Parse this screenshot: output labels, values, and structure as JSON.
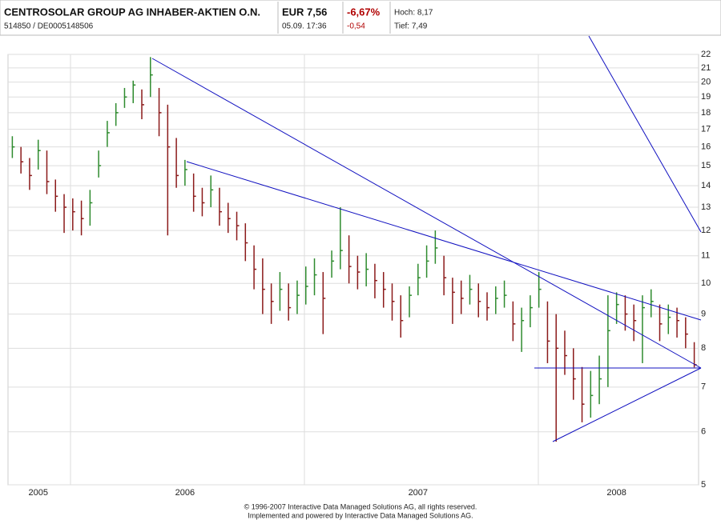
{
  "header": {
    "title": "CENTROSOLAR GROUP AG INHABER-AKTIEN O.N.",
    "ids": "514850  /  DE0005148506",
    "price": "EUR 7,56",
    "time": "05.09. 17:36",
    "change_pct": "-6,67%",
    "change_abs": "-0,54",
    "high": "Hoch: 8,17",
    "low": "Tief: 7,49"
  },
  "footer": {
    "line1": "© 1996-2007 Interactive Data Managed Solutions AG, all rights reserved.",
    "line2": "Implemented and powered by Interactive Data Managed Solutions AG."
  },
  "chart_data": {
    "type": "ohlc",
    "log_y": true,
    "grid": true,
    "up_color": "#2e8b2e",
    "down_color": "#8b1a1a",
    "categories": [
      null,
      null,
      null,
      "2005",
      null,
      null,
      null,
      null,
      null,
      null,
      null,
      null,
      null,
      null,
      null,
      null,
      null,
      null,
      null,
      null,
      "2006",
      null,
      null,
      null,
      null,
      null,
      null,
      null,
      null,
      null,
      null,
      null,
      null,
      null,
      null,
      null,
      null,
      null,
      null,
      null,
      null,
      null,
      null,
      null,
      null,
      null,
      null,
      "2007",
      null,
      null,
      null,
      null,
      null,
      null,
      null,
      null,
      null,
      null,
      null,
      null,
      null,
      null,
      null,
      null,
      null,
      null,
      null,
      null,
      null,
      null,
      "2008",
      null,
      null,
      null,
      null,
      null,
      null,
      null,
      null,
      null
    ],
    "high": [
      16.6,
      16.0,
      15.4,
      16.4,
      15.8,
      14.3,
      13.6,
      13.4,
      13.3,
      13.8,
      15.8,
      17.5,
      18.6,
      19.6,
      20.1,
      19.5,
      21.8,
      19.6,
      18.5,
      16.5,
      15.3,
      14.6,
      13.9,
      14.5,
      13.9,
      13.2,
      12.8,
      12.3,
      11.4,
      10.9,
      10.0,
      10.4,
      10.0,
      10.1,
      10.6,
      10.9,
      10.4,
      11.2,
      13.0,
      11.8,
      11.0,
      11.1,
      10.7,
      10.4,
      10.0,
      9.6,
      9.9,
      10.7,
      11.4,
      12.0,
      11.0,
      10.2,
      10.1,
      10.3,
      10.0,
      9.7,
      9.9,
      10.1,
      9.4,
      9.2,
      9.6,
      10.4,
      9.4,
      9.0,
      8.5,
      8.0,
      7.5,
      7.4,
      7.8,
      9.6,
      9.7,
      9.6,
      9.3,
      9.6,
      9.8,
      9.3,
      9.3,
      9.2,
      8.9,
      8.17
    ],
    "low": [
      15.4,
      14.6,
      13.8,
      14.8,
      13.6,
      12.8,
      11.9,
      12.0,
      11.8,
      12.2,
      14.4,
      16.0,
      17.2,
      18.3,
      18.6,
      17.6,
      19.0,
      16.6,
      11.8,
      13.9,
      14.0,
      12.8,
      12.6,
      13.0,
      12.2,
      11.9,
      11.6,
      10.8,
      9.8,
      9.0,
      8.7,
      9.1,
      8.8,
      9.0,
      9.3,
      9.6,
      8.4,
      10.2,
      10.5,
      10.0,
      9.8,
      9.9,
      9.5,
      9.2,
      8.8,
      8.3,
      8.9,
      9.6,
      10.2,
      10.7,
      9.6,
      8.7,
      9.0,
      9.3,
      8.9,
      8.8,
      9.0,
      9.2,
      8.2,
      7.9,
      8.6,
      9.2,
      7.6,
      5.8,
      7.3,
      6.7,
      6.2,
      6.3,
      6.6,
      7.0,
      8.7,
      8.5,
      8.2,
      7.6,
      8.9,
      8.2,
      8.4,
      8.3,
      8.0,
      7.49
    ],
    "close": [
      16,
      15.2,
      14.5,
      15.8,
      14.2,
      13.5,
      13,
      12.8,
      12.5,
      13.2,
      15,
      16.8,
      18,
      19,
      19.8,
      18.5,
      20.5,
      18,
      16,
      14.5,
      14.8,
      13.5,
      13.2,
      13.8,
      12.8,
      12.5,
      12.2,
      11.5,
      10.5,
      9.8,
      9.4,
      9.8,
      9.2,
      9.6,
      9.9,
      10.3,
      9.5,
      10.8,
      11.2,
      10.6,
      10.4,
      10.5,
      10.1,
      9.8,
      9.4,
      8.8,
      9.6,
      10.2,
      10.8,
      11.3,
      10.2,
      9.7,
      9.5,
      9.8,
      9.4,
      9.2,
      9.5,
      9.6,
      8.7,
      8.8,
      9.2,
      9.8,
      8.2,
      8.0,
      7.8,
      7.2,
      6.6,
      6.8,
      7.2,
      8.5,
      9.3,
      9.0,
      8.8,
      9.2,
      9.4,
      8.7,
      8.9,
      8.8,
      8.4,
      7.56
    ],
    "ylim": [
      5,
      22
    ],
    "yticks": [
      5,
      6,
      7,
      8,
      9,
      10,
      11,
      12,
      13,
      14,
      15,
      16,
      17,
      18,
      19,
      20,
      21,
      22
    ]
  }
}
